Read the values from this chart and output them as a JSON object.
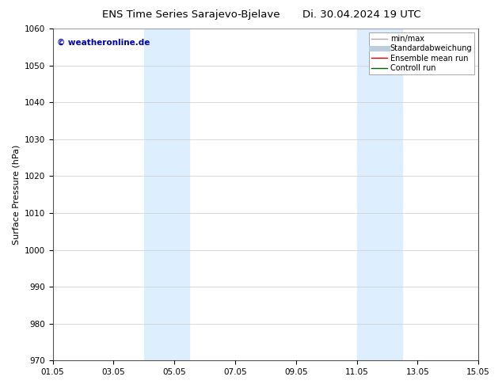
{
  "title": "ENS Time Series Sarajevo-Bjelave",
  "title_date": "Di. 30.04.2024 19 UTC",
  "ylabel": "Surface Pressure (hPa)",
  "ylim": [
    970,
    1060
  ],
  "yticks": [
    970,
    980,
    990,
    1000,
    1010,
    1020,
    1030,
    1040,
    1050,
    1060
  ],
  "xtick_labels": [
    "01.05",
    "03.05",
    "05.05",
    "07.05",
    "09.05",
    "11.05",
    "13.05",
    "15.05"
  ],
  "xtick_positions": [
    1.0,
    3.0,
    5.0,
    7.0,
    9.0,
    11.0,
    13.0,
    15.0
  ],
  "xlim": [
    1.0,
    15.0
  ],
  "shaded_bands": [
    {
      "x_start": 4.0,
      "x_end": 5.5
    },
    {
      "x_start": 11.0,
      "x_end": 12.5
    }
  ],
  "shade_color": "#ddeeff",
  "watermark_text": "© weatheronline.de",
  "watermark_color": "#0000bb",
  "legend_entries": [
    {
      "label": "min/max",
      "color": "#aaaaaa",
      "lw": 1.0,
      "style": "solid"
    },
    {
      "label": "Standardabweichung",
      "color": "#bbccdd",
      "lw": 5,
      "style": "solid"
    },
    {
      "label": "Ensemble mean run",
      "color": "#cc0000",
      "lw": 1.0,
      "style": "solid"
    },
    {
      "label": "Controll run",
      "color": "#006600",
      "lw": 1.0,
      "style": "solid"
    }
  ],
  "background_color": "#ffffff",
  "title_fontsize": 9.5,
  "label_fontsize": 8,
  "tick_fontsize": 7.5,
  "watermark_fontsize": 7.5,
  "legend_fontsize": 7.0
}
